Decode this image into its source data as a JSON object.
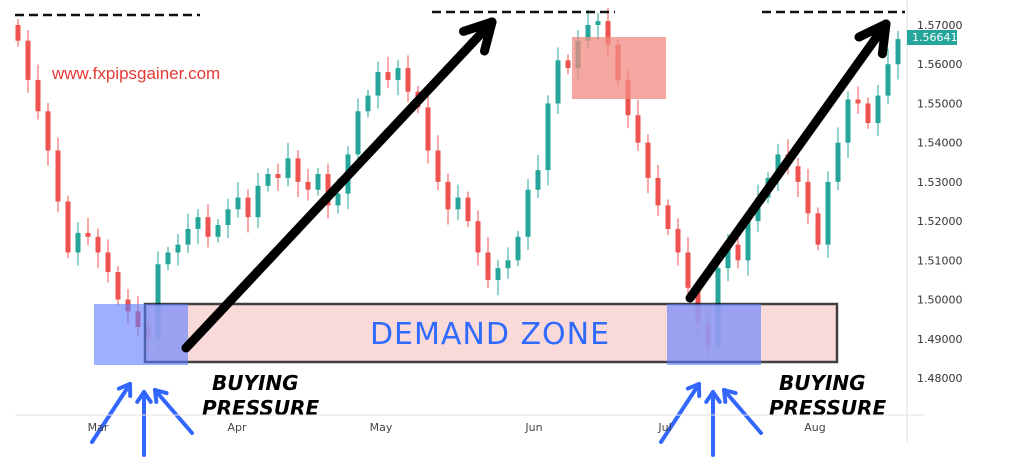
{
  "chart_data": {
    "type": "candlestick",
    "watermark": "www.fxpipsgainer.com",
    "ylim": [
      1.475,
      1.575
    ],
    "y_ticks": [
      "1.57000",
      "1.56000",
      "1.55000",
      "1.54000",
      "1.53000",
      "1.52000",
      "1.51000",
      "1.50000",
      "1.49000",
      "1.48000"
    ],
    "x_ticks": [
      "Mar",
      "Apr",
      "May",
      "Jun",
      "Jul",
      "Aug"
    ],
    "last_price": "1.56641",
    "colors": {
      "up": "#26a69a",
      "down": "#ef5350",
      "demand_zone": "#f9d0d0",
      "buying_zone": "#5a7cff",
      "supply_box": "#f28b82",
      "arrow": "#000000",
      "pointer_arrows": "#3366ff"
    },
    "closes": [
      1.566,
      1.556,
      1.548,
      1.538,
      1.525,
      1.512,
      1.517,
      1.516,
      1.512,
      1.507,
      1.5,
      1.497,
      1.493,
      1.49,
      1.509,
      1.512,
      1.514,
      1.518,
      1.521,
      1.516,
      1.519,
      1.523,
      1.526,
      1.521,
      1.529,
      1.532,
      1.531,
      1.536,
      1.53,
      1.528,
      1.532,
      1.524,
      1.527,
      1.537,
      1.548,
      1.552,
      1.558,
      1.556,
      1.559,
      1.553,
      1.549,
      1.538,
      1.53,
      1.523,
      1.526,
      1.52,
      1.512,
      1.505,
      1.508,
      1.51,
      1.516,
      1.528,
      1.533,
      1.55,
      1.561,
      1.559,
      1.566,
      1.57,
      1.571,
      1.565,
      1.556,
      1.547,
      1.54,
      1.531,
      1.524,
      1.518,
      1.512,
      1.503,
      1.494,
      1.488,
      1.508,
      1.514,
      1.51,
      1.52,
      1.526,
      1.531,
      1.537,
      1.534,
      1.53,
      1.522,
      1.514,
      1.53,
      1.54,
      1.551,
      1.55,
      1.545,
      1.552,
      1.56,
      1.5664
    ],
    "annotations": {
      "demand_zone": {
        "label": "DEMAND ZONE",
        "price_range": [
          1.4865,
          1.4985
        ]
      },
      "buying_pressure_1": "BUYING PRESSURE",
      "buying_pressure_2": "BUYING PRESSURE",
      "resistance_levels": [
        1.571,
        1.572,
        1.5725
      ]
    }
  }
}
